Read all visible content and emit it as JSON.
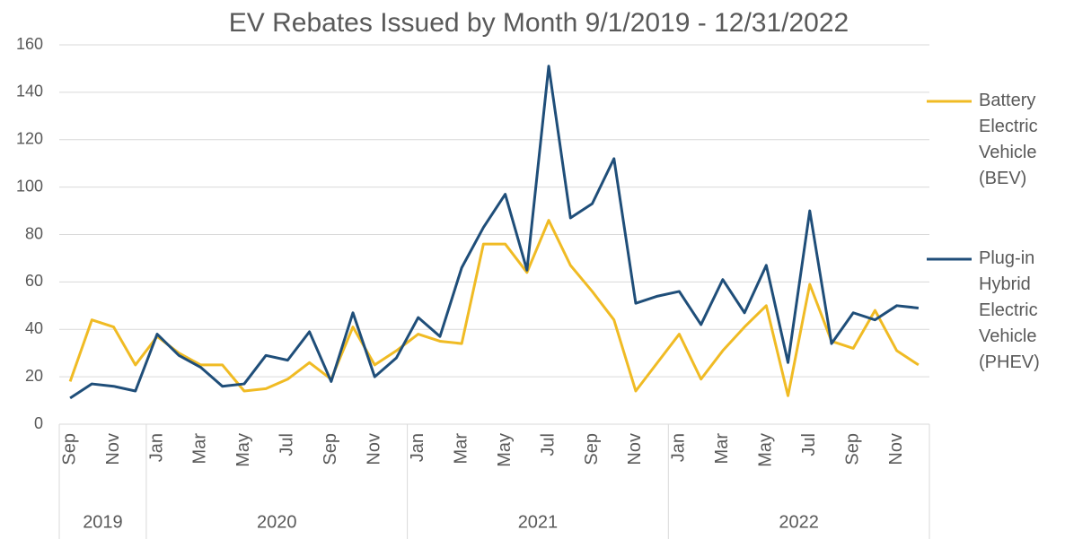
{
  "chart_data": {
    "type": "line",
    "title": "EV Rebates Issued by Month 9/1/2019 - 12/31/2022",
    "categories": [
      "Sep",
      null,
      "Nov",
      null,
      "Jan",
      null,
      "Mar",
      null,
      "May",
      null,
      "Jul",
      null,
      "Sep",
      null,
      "Nov",
      null,
      "Jan",
      null,
      "Mar",
      null,
      "May",
      null,
      "Jul",
      null,
      "Sep",
      null,
      "Nov",
      null,
      "Jan",
      null,
      "Mar",
      null,
      "May",
      null,
      "Jul",
      null,
      "Sep",
      null,
      "Nov",
      null
    ],
    "groups": [
      {
        "label": "2019",
        "count": 4
      },
      {
        "label": "2020",
        "count": 12
      },
      {
        "label": "2021",
        "count": 12
      },
      {
        "label": "2022",
        "count": 12
      }
    ],
    "series": [
      {
        "name": "Battery Electric Vehicle (BEV)",
        "color": "#f0bb24",
        "values": [
          18,
          44,
          41,
          25,
          37,
          30,
          25,
          25,
          14,
          15,
          19,
          26,
          19,
          41,
          25,
          31,
          38,
          35,
          34,
          76,
          76,
          64,
          86,
          67,
          56,
          44,
          14,
          26,
          38,
          19,
          31,
          41,
          50,
          12,
          59,
          35,
          32,
          48,
          31,
          25
        ]
      },
      {
        "name": "Plug-in Hybrid Electric Vehicle (PHEV)",
        "color": "#1f4e79",
        "values": [
          11,
          17,
          16,
          14,
          38,
          29,
          24,
          16,
          17,
          29,
          27,
          39,
          18,
          47,
          20,
          28,
          45,
          37,
          66,
          83,
          97,
          65,
          151,
          87,
          93,
          112,
          51,
          54,
          56,
          42,
          61,
          47,
          67,
          26,
          90,
          34,
          47,
          44,
          50,
          49
        ]
      }
    ],
    "ylim": [
      0,
      160
    ],
    "yticks": [
      0,
      20,
      40,
      60,
      80,
      100,
      120,
      140,
      160
    ],
    "grid": true,
    "legend": "right"
  }
}
